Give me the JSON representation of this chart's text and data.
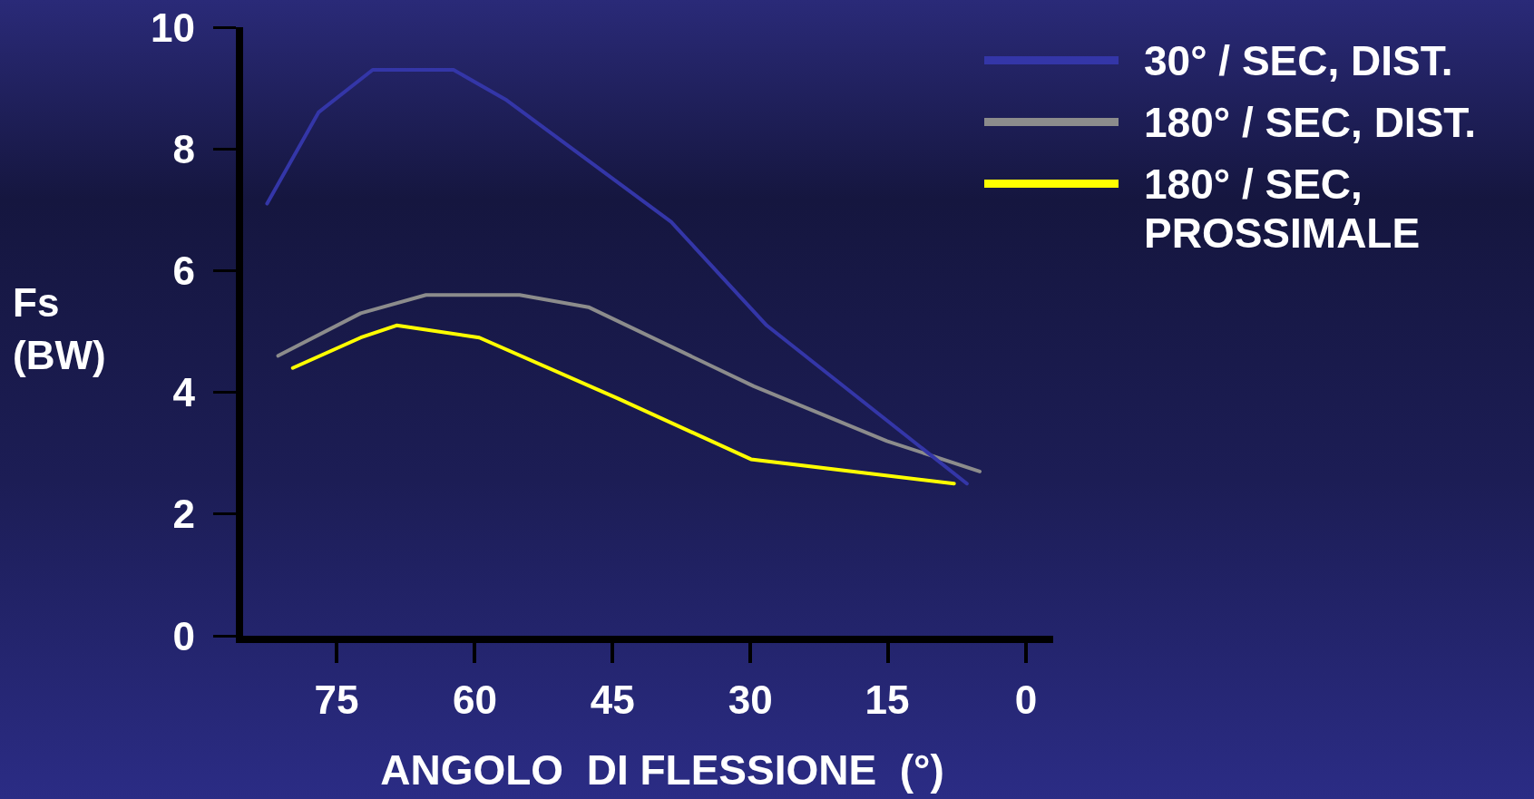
{
  "chart_data": {
    "type": "line",
    "xlabel": "ANGOLO  DI FLESSIONE  (°)",
    "ylabel": "Fs (BW)",
    "xlim": [
      86,
      -3
    ],
    "xticks": [
      75,
      60,
      45,
      30,
      15,
      0
    ],
    "ylim": [
      0,
      10
    ],
    "yticks": [
      0,
      2,
      4,
      6,
      8,
      10
    ],
    "grid": false,
    "legend": "top right",
    "marker": "none",
    "line_style": "solid",
    "series": [
      {
        "name": "30° / SEC, DIST.",
        "color": "#3436a8",
        "x": [
          82.6,
          77.0,
          71.1,
          62.3,
          56.5,
          38.6,
          28.2,
          6.4
        ],
        "values": [
          7.1,
          8.6,
          9.3,
          9.3,
          8.8,
          6.8,
          5.1,
          2.5
        ]
      },
      {
        "name": "180° / SEC, DIST.",
        "color": "#8c8c8c",
        "x": [
          81.4,
          72.4,
          65.3,
          55.1,
          47.6,
          29.6,
          15.1,
          5.0
        ],
        "values": [
          4.6,
          5.3,
          5.6,
          5.6,
          5.4,
          4.1,
          3.2,
          2.7
        ]
      },
      {
        "name": "180° / SEC, PROSSIMALE",
        "color": "#ffff00",
        "x": [
          79.8,
          72.4,
          68.5,
          59.5,
          44.4,
          29.9,
          7.8
        ],
        "values": [
          4.4,
          4.9,
          5.1,
          4.9,
          3.9,
          2.9,
          2.5
        ]
      }
    ]
  }
}
